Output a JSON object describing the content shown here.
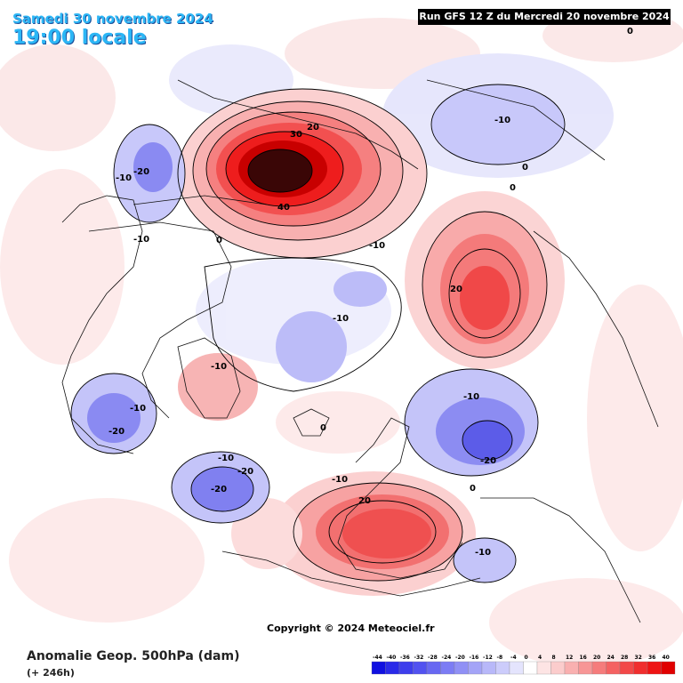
{
  "header": {
    "date": "Samedi 30 novembre 2024",
    "time": "19:00 locale",
    "run": "Run GFS 12 Z du Mercredi 20 novembre 2024"
  },
  "footer": {
    "title": "Anomalie Geop. 500hPa (dam)",
    "subtitle": "(+ 246h)",
    "copyright": "Copyright © 2024 Meteociel.fr"
  },
  "legend": {
    "values": [
      "-44",
      "-40",
      "-36",
      "-32",
      "-28",
      "-24",
      "-20",
      "-16",
      "-12",
      "-8",
      "-4",
      "0",
      "4",
      "8",
      "12",
      "16",
      "20",
      "24",
      "28",
      "32",
      "36",
      "40"
    ],
    "colors": [
      "#1010e0",
      "#2a2ae8",
      "#3e3eec",
      "#5252f0",
      "#6868f2",
      "#7c7cf4",
      "#9090f5",
      "#a4a4f7",
      "#b8b8f9",
      "#ccccfb",
      "#e4e4fd",
      "#ffffff",
      "#fde4e4",
      "#fbcccc",
      "#f9b0b0",
      "#f79696",
      "#f57c7c",
      "#f46262",
      "#f24848",
      "#f02e2e",
      "#ee1414",
      "#e00000"
    ]
  },
  "contour_labels": {
    "l1": "-10",
    "l2": "-20",
    "l3": "-10",
    "l4": "0",
    "l5": "30",
    "l6": "20",
    "l7": "40",
    "l8": "-10",
    "l9": "0",
    "l10": "0",
    "l11": "-10",
    "l12": "20",
    "l13": "-10",
    "l14": "-10",
    "l15": "-10",
    "l16": "-20",
    "l17": "0",
    "l18": "-10",
    "l19": "-20",
    "l20": "-20",
    "l21": "-10",
    "l22": "-20",
    "l23": "-10",
    "l24": "20",
    "l25": "0",
    "l26": "-10",
    "l27": "0"
  }
}
